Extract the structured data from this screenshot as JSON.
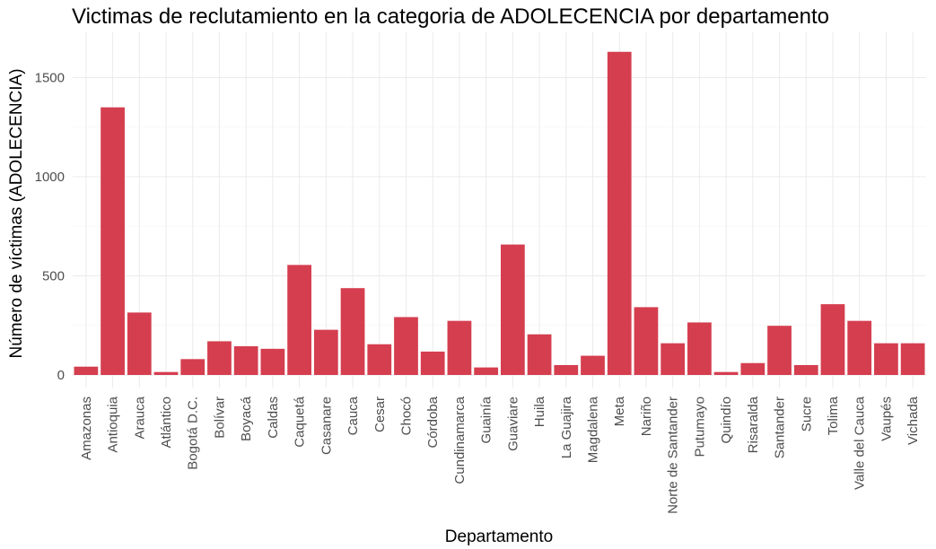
{
  "chart_data": {
    "type": "bar",
    "title": "Victimas de reclutamiento en la categoria de ADOLECENCIA por departamento",
    "xlabel": "Departamento",
    "ylabel": "Número de víctimas (ADOLECENCIA)",
    "ylim": [
      0,
      1700
    ],
    "yticks": [
      0,
      500,
      1000,
      1500
    ],
    "grid": true,
    "bar_color": "#d53e4f",
    "categories": [
      "Amazonas",
      "Antioquia",
      "Arauca",
      "Atlántico",
      "Bogotá D.C.",
      "Bolívar",
      "Boyacá",
      "Caldas",
      "Caquetá",
      "Casanare",
      "Cauca",
      "Cesar",
      "Chocó",
      "Córdoba",
      "Cundinamarca",
      "Guainía",
      "Guaviare",
      "Huila",
      "La Guajira",
      "Magdalena",
      "Meta",
      "Nariño",
      "Norte de Santander",
      "Putumayo",
      "Quindío",
      "Risaralda",
      "Santander",
      "Sucre",
      "Tolima",
      "Valle del Cauca",
      "Vaupés",
      "Vichada"
    ],
    "values": [
      42,
      1350,
      315,
      15,
      80,
      170,
      145,
      132,
      555,
      228,
      438,
      155,
      292,
      118,
      273,
      38,
      658,
      205,
      50,
      97,
      1630,
      342,
      160,
      265,
      15,
      60,
      248,
      50,
      357,
      273,
      160,
      160
    ]
  }
}
